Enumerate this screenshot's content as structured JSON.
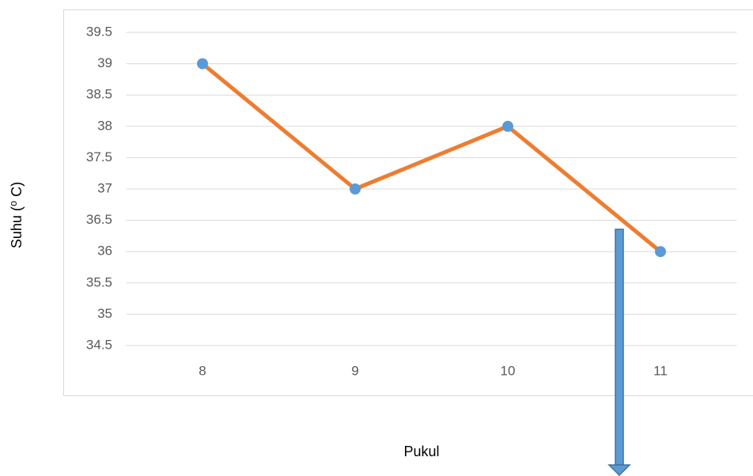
{
  "chart_data": {
    "type": "line",
    "x_label": "Pukul",
    "y_label": "Suhu (⁰ C)",
    "categories": [
      "8",
      "9",
      "10",
      "11"
    ],
    "values": [
      39,
      37,
      38,
      36
    ],
    "color": "#ed7d31",
    "marker_color": "#5b9bd5",
    "ylim": [
      34.5,
      39.5
    ],
    "yticks": [
      34.5,
      35,
      35.5,
      36,
      36.5,
      37,
      37.5,
      38,
      38.5,
      39,
      39.5
    ],
    "grid": true
  }
}
